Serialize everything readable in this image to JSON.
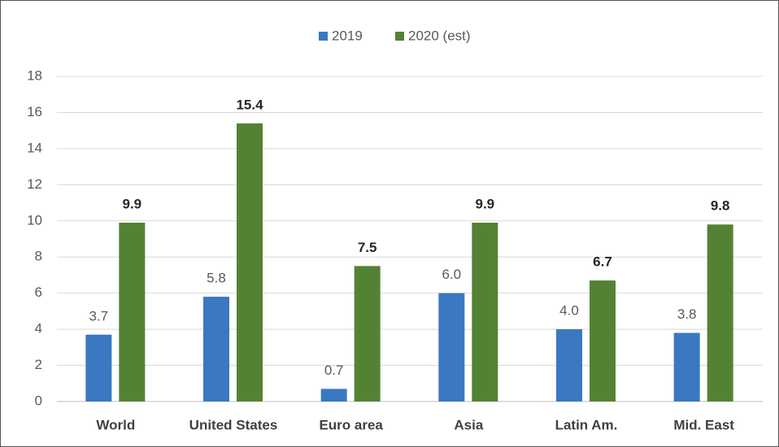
{
  "chart_data": {
    "type": "bar",
    "categories": [
      "World",
      "United States",
      "Euro area",
      "Asia",
      "Latin Am.",
      "Mid. East"
    ],
    "series": [
      {
        "name": "2019",
        "color": "#3a78c2",
        "values": [
          3.7,
          5.8,
          0.7,
          6.0,
          4.0,
          3.8
        ],
        "value_labels": [
          "3.7",
          "5.8",
          "0.7",
          "6.0",
          "4.0",
          "3.8"
        ]
      },
      {
        "name": "2020 (est)",
        "color": "#548235",
        "values": [
          9.9,
          15.4,
          7.5,
          9.9,
          6.7,
          9.8
        ],
        "value_labels": [
          "9.9",
          "15.4",
          "7.5",
          "9.9",
          "6.7",
          "9.8"
        ]
      }
    ],
    "ylim": [
      0,
      18
    ],
    "yticks": [
      0,
      2,
      4,
      6,
      8,
      10,
      12,
      14,
      16,
      18
    ],
    "grid": true,
    "legend": "top"
  }
}
